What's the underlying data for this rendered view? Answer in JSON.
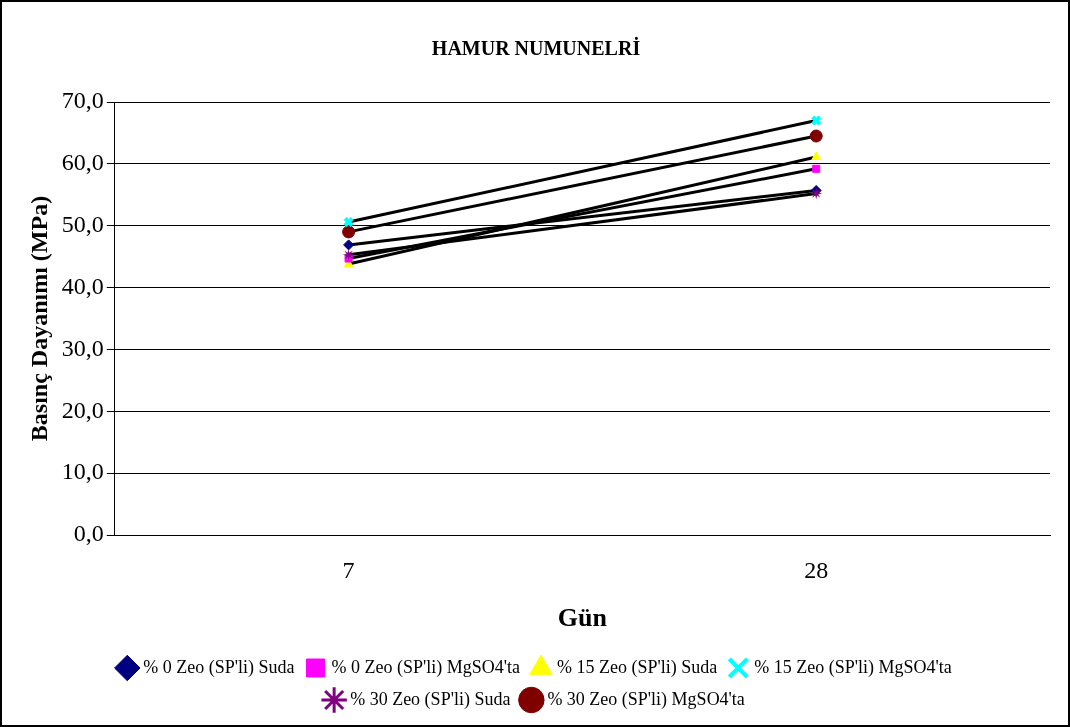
{
  "chart_data": {
    "type": "line",
    "title": "HAMUR NUMUNELRİ",
    "xlabel": "Gün",
    "ylabel": "Basınç Dayanımı (MPa)",
    "categories": [
      "7",
      "28"
    ],
    "series": [
      {
        "name": "% 0 Zeo (SP'li) Suda",
        "color": "#000080",
        "marker": "diamond",
        "values": [
          46.9,
          55.7
        ]
      },
      {
        "name": "% 0 Zeo (SP'li) MgSO4'ta",
        "color": "#ff00ff",
        "marker": "square",
        "values": [
          44.7,
          59.2
        ]
      },
      {
        "name": "% 15 Zeo (SP'li) Suda",
        "color": "#ffff00",
        "marker": "triangle",
        "values": [
          43.8,
          61.1
        ]
      },
      {
        "name": "% 15 Zeo (SP'li) MgSO4'ta",
        "color": "#00ffff",
        "marker": "cross",
        "values": [
          50.6,
          67.0
        ]
      },
      {
        "name": "% 30 Zeo (SP'li) Suda",
        "color": "#800080",
        "marker": "star",
        "values": [
          45.3,
          55.2
        ]
      },
      {
        "name": "% 30 Zeo (SP'li) MgSO4'ta",
        "color": "#800000",
        "marker": "circle",
        "values": [
          49.0,
          64.5
        ]
      }
    ],
    "ylim": [
      0,
      70
    ],
    "yticks": [
      {
        "value": 0,
        "label": "0,0"
      },
      {
        "value": 10,
        "label": "10,0"
      },
      {
        "value": 20,
        "label": "20,0"
      },
      {
        "value": 30,
        "label": "30,0"
      },
      {
        "value": 40,
        "label": "40,0"
      },
      {
        "value": 50,
        "label": "50,0"
      },
      {
        "value": 60,
        "label": "60,0"
      },
      {
        "value": 70,
        "label": "70,0"
      }
    ],
    "grid": "y",
    "legend": "bottom",
    "line_style": "solid"
  }
}
